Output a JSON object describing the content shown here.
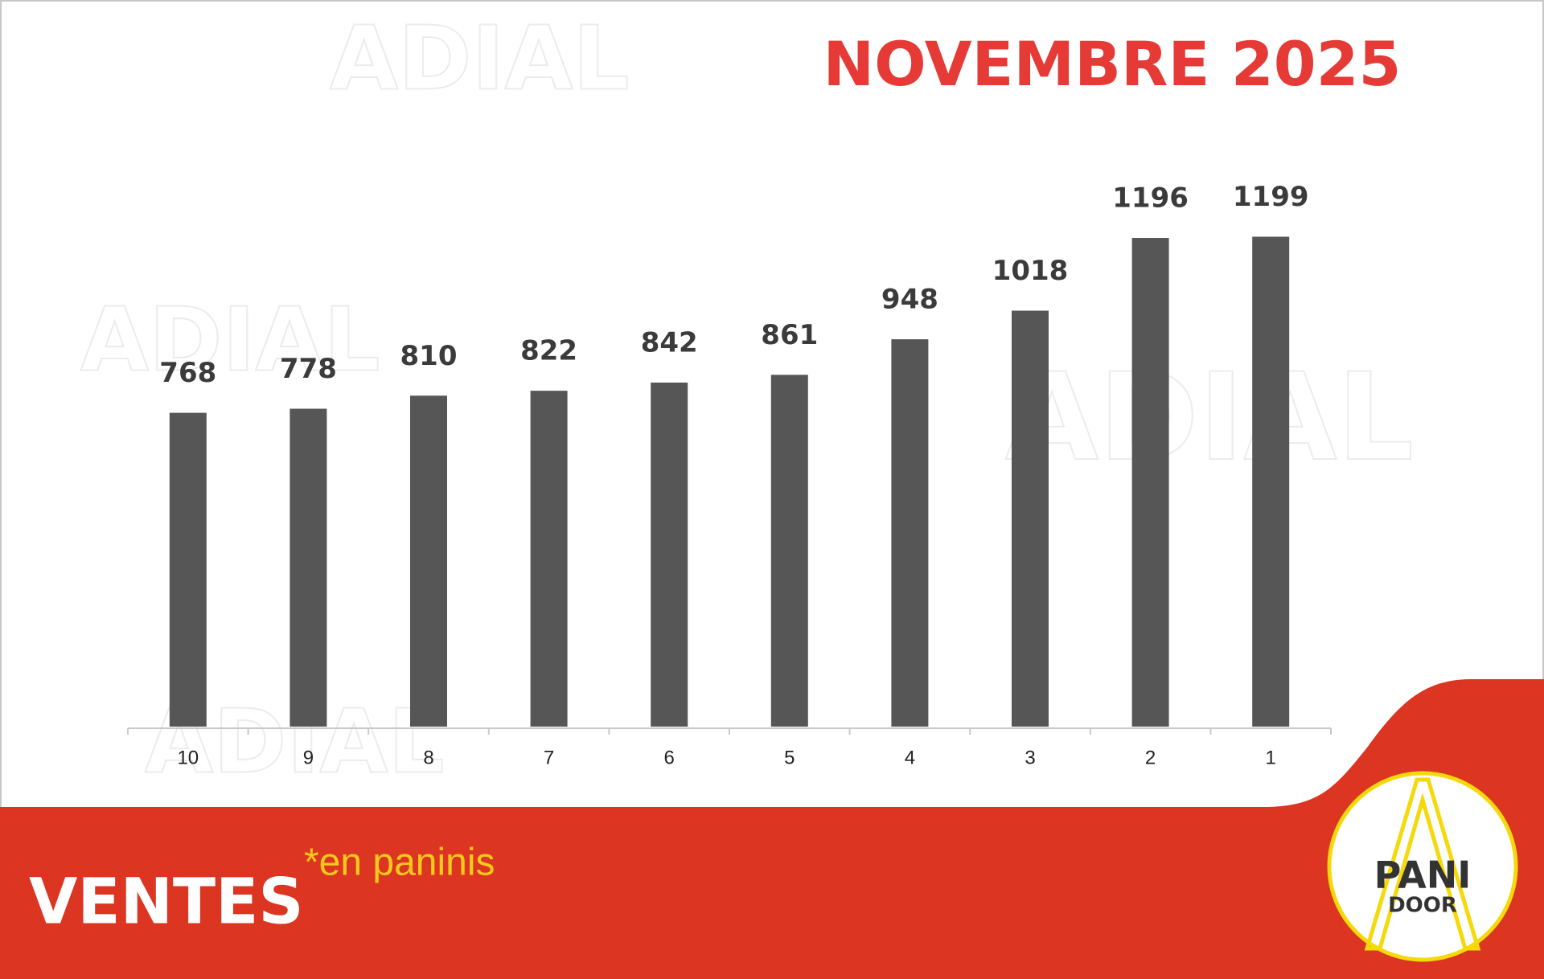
{
  "chart_data": {
    "type": "bar",
    "title": "NOVEMBRE 2025",
    "categories": [
      "10",
      "9",
      "8",
      "7",
      "6",
      "5",
      "4",
      "3",
      "2",
      "1"
    ],
    "values": [
      768,
      778,
      810,
      822,
      842,
      861,
      948,
      1018,
      1196,
      1199
    ],
    "color": "#575657",
    "ylim": [
      0,
      1200
    ],
    "grid": false
  },
  "banner": {
    "title": "VENTES",
    "note": "*en paninis"
  },
  "logo": {
    "line1": "PANI",
    "line2": "DOOR"
  },
  "watermark": "ADIAL"
}
